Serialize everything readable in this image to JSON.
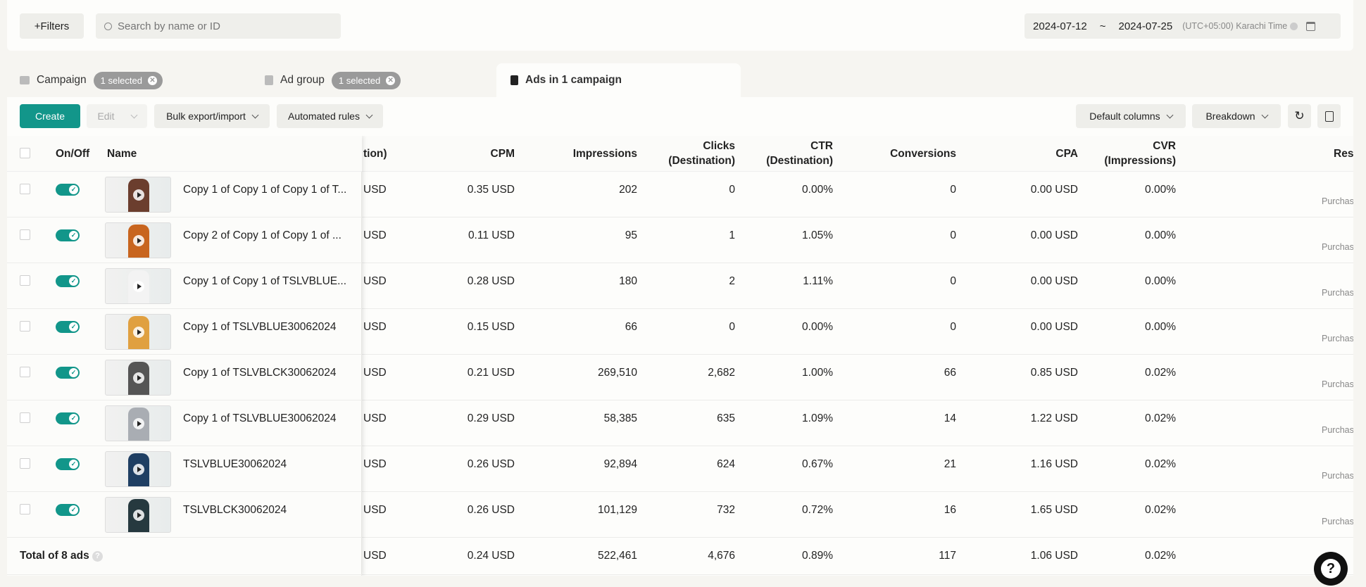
{
  "topbar": {
    "filters_label": "+Filters",
    "search_placeholder": "Search by name or ID",
    "date_start": "2024-07-12",
    "date_sep": "~",
    "date_end": "2024-07-25",
    "timezone": "(UTC+05:00) Karachi Time"
  },
  "tabs": [
    {
      "label": "Campaign",
      "badge": "1 selected"
    },
    {
      "label": "Ad group",
      "badge": "1 selected"
    },
    {
      "label": "Ads in 1 campaign"
    }
  ],
  "toolbar": {
    "create": "Create",
    "edit": "Edit",
    "bulk": "Bulk export/import",
    "rules": "Automated rules",
    "columns": "Default columns",
    "breakdown": "Breakdown"
  },
  "colors": {
    "accent": "#12968a"
  },
  "table": {
    "headers": {
      "onoff": "On/Off",
      "name": "Name",
      "spend": "tion)",
      "cpm": "CPM",
      "impressions": "Impressions",
      "clicks": "Clicks (Destination)",
      "ctr": "CTR (Destination)",
      "conversions": "Conversions",
      "cpa": "CPA",
      "cvr": "CVR (Impressions)",
      "results": "Resu"
    },
    "rows": [
      {
        "name": "Copy 1 of Copy 1 of Copy 1 of T...",
        "spend": "USD",
        "cpm": "0.35 USD",
        "impressions": "202",
        "clicks": "0",
        "ctr": "0.00%",
        "conversions": "0",
        "cpa": "0.00 USD",
        "cvr": "0.00%",
        "result_type": "Purchas",
        "thumb": "#6b3e2e",
        "on": true
      },
      {
        "name": "Copy 2 of Copy 1 of Copy 1 of ...",
        "spend": "USD",
        "cpm": "0.11 USD",
        "impressions": "95",
        "clicks": "1",
        "ctr": "1.05%",
        "conversions": "0",
        "cpa": "0.00 USD",
        "cvr": "0.00%",
        "result_type": "Purchas",
        "thumb": "#c8651f",
        "on": true
      },
      {
        "name": "Copy 1 of Copy 1 of TSLVBLUE...",
        "spend": "USD",
        "cpm": "0.28 USD",
        "impressions": "180",
        "clicks": "2",
        "ctr": "1.11%",
        "conversions": "0",
        "cpa": "0.00 USD",
        "cvr": "0.00%",
        "result_type": "Purchas",
        "thumb": "#f3f3f3",
        "on": true
      },
      {
        "name": "Copy 1 of TSLVBLUE30062024",
        "spend": "USD",
        "cpm": "0.15 USD",
        "impressions": "66",
        "clicks": "0",
        "ctr": "0.00%",
        "conversions": "0",
        "cpa": "0.00 USD",
        "cvr": "0.00%",
        "result_type": "Purchas",
        "thumb": "#e0a040",
        "on": true
      },
      {
        "name": "Copy 1 of TSLVBLCK30062024",
        "spend": "USD",
        "cpm": "0.21 USD",
        "impressions": "269,510",
        "clicks": "2,682",
        "ctr": "1.00%",
        "conversions": "66",
        "cpa": "0.85 USD",
        "cvr": "0.02%",
        "result_type": "Purchas",
        "thumb": "#555555",
        "on": true
      },
      {
        "name": "Copy 1 of TSLVBLUE30062024",
        "spend": "USD",
        "cpm": "0.29 USD",
        "impressions": "58,385",
        "clicks": "635",
        "ctr": "1.09%",
        "conversions": "14",
        "cpa": "1.22 USD",
        "cvr": "0.02%",
        "result_type": "Purchas",
        "thumb": "#a9adb3",
        "on": true
      },
      {
        "name": "TSLVBLUE30062024",
        "spend": "USD",
        "cpm": "0.26 USD",
        "impressions": "92,894",
        "clicks": "624",
        "ctr": "0.67%",
        "conversions": "21",
        "cpa": "1.16 USD",
        "cvr": "0.02%",
        "result_type": "Purchas",
        "thumb": "#1f3f63",
        "on": true
      },
      {
        "name": "TSLVBLCK30062024",
        "spend": "USD",
        "cpm": "0.26 USD",
        "impressions": "101,129",
        "clicks": "732",
        "ctr": "0.72%",
        "conversions": "16",
        "cpa": "1.65 USD",
        "cvr": "0.02%",
        "result_type": "Purchas",
        "thumb": "#26393f",
        "on": true
      }
    ],
    "total": {
      "label": "Total of 8 ads",
      "spend": "USD",
      "cpm": "0.24 USD",
      "impressions": "522,461",
      "clicks": "4,676",
      "ctr": "0.89%",
      "conversions": "117",
      "cpa": "1.06 USD",
      "cvr": "0.02%"
    }
  }
}
